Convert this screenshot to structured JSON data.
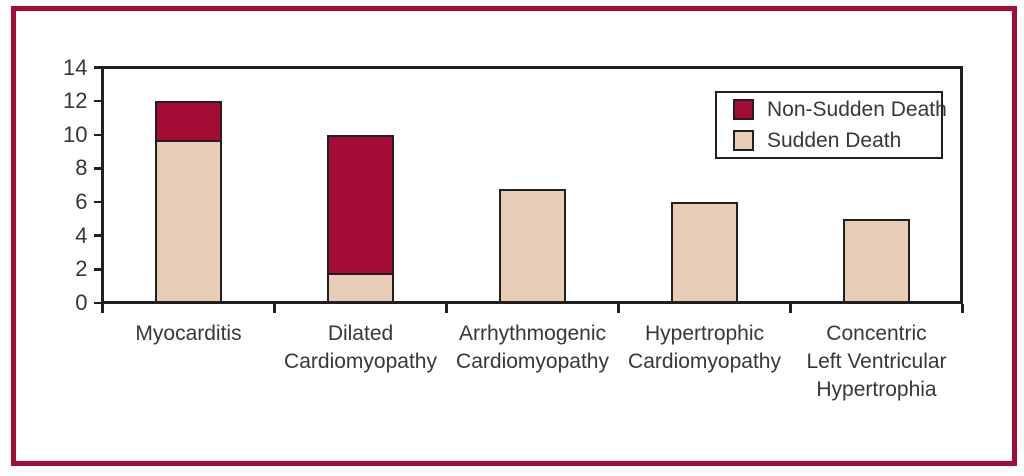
{
  "figure": {
    "frame_color": "#A50C35",
    "background_color": "#FFFFFF",
    "axis_color": "#231F20",
    "text_color": "#3B3536"
  },
  "chart_data": {
    "type": "bar",
    "stacked": true,
    "title": "",
    "xlabel": "",
    "ylabel": "",
    "ylim": [
      0,
      14
    ],
    "yticks": [
      0,
      2,
      4,
      6,
      8,
      10,
      12,
      14
    ],
    "grid": false,
    "legend_position": "top-right-inside",
    "categories": [
      "Myocarditis",
      "Dilated Cardiomyopathy",
      "Arrhythmogenic Cardiomyopathy",
      "Hypertrophic Cardiomyopathy",
      "Concentric Left Ventricular Hypertrophia"
    ],
    "category_lines": [
      [
        "Myocarditis"
      ],
      [
        "Dilated",
        "Cardiomyopathy"
      ],
      [
        "Arrhythmogenic",
        "Cardiomyopathy"
      ],
      [
        "Hypertrophic",
        "Cardiomyopathy"
      ],
      [
        "Concentric",
        "Left Ventricular",
        "Hypertrophia"
      ]
    ],
    "series": [
      {
        "name": "Sudden Death",
        "color": "#E7CCB6",
        "values": [
          9.7,
          1.8,
          6.8,
          6.0,
          5.0
        ]
      },
      {
        "name": "Non-Sudden Death",
        "color": "#A50C35",
        "values": [
          2.3,
          8.2,
          0.0,
          0.0,
          0.0
        ]
      }
    ],
    "totals": [
      12.0,
      10.0,
      6.8,
      6.0,
      5.0
    ],
    "legend": [
      {
        "label": "Non-Sudden Death",
        "color": "#A50C35"
      },
      {
        "label": "Sudden Death",
        "color": "#E7CCB6"
      }
    ],
    "bar_border_color": "#231F20"
  }
}
